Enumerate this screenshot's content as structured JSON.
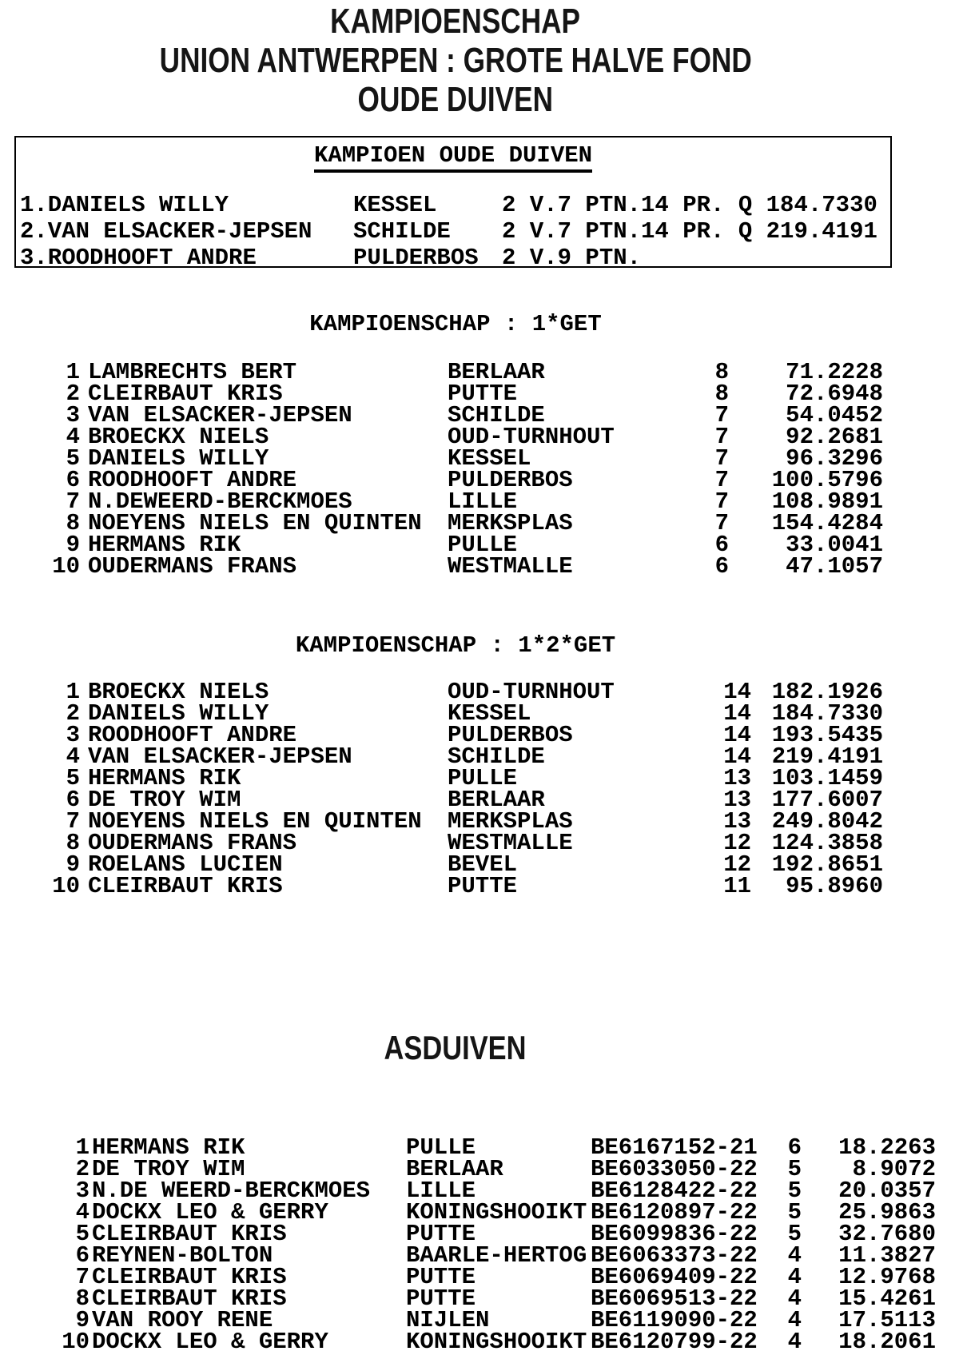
{
  "header": {
    "title_lines": [
      "KAMPIOENSCHAP",
      "UNION ANTWERPEN : GROTE HALVE FOND",
      "OUDE DUIVEN"
    ]
  },
  "champion_box": {
    "title": "KAMPIOEN OUDE DUIVEN",
    "rows": [
      {
        "entry": "1.DANIELS WILLY",
        "city": "KESSEL",
        "result": "2 V.7 PTN.14 PR. Q 184.7330"
      },
      {
        "entry": "2.VAN ELSACKER-JEPSEN",
        "city": "SCHILDE",
        "result": "2 V.7 PTN.14 PR. Q 219.4191"
      },
      {
        "entry": "3.ROODHOOFT ANDRE",
        "city": "PULDERBOS",
        "result": "2 V.9 PTN."
      }
    ]
  },
  "kampioenschap_sections": [
    {
      "title": "KAMPIOENSCHAP : 1*GET",
      "rows": [
        {
          "rank": "1",
          "name": "LAMBRECHTS BERT",
          "city": "BERLAAR",
          "count": "8",
          "points": "71.2228"
        },
        {
          "rank": "2",
          "name": "CLEIRBAUT KRIS",
          "city": "PUTTE",
          "count": "8",
          "points": "72.6948"
        },
        {
          "rank": "3",
          "name": "VAN ELSACKER-JEPSEN",
          "city": "SCHILDE",
          "count": "7",
          "points": "54.0452"
        },
        {
          "rank": "4",
          "name": "BROECKX NIELS",
          "city": "OUD-TURNHOUT",
          "count": "7",
          "points": "92.2681"
        },
        {
          "rank": "5",
          "name": "DANIELS WILLY",
          "city": "KESSEL",
          "count": "7",
          "points": "96.3296"
        },
        {
          "rank": "6",
          "name": "ROODHOOFT ANDRE",
          "city": "PULDERBOS",
          "count": "7",
          "points": "100.5796"
        },
        {
          "rank": "7",
          "name": "N.DEWEERD-BERCKMOES",
          "city": "LILLE",
          "count": "7",
          "points": "108.9891"
        },
        {
          "rank": "8",
          "name": "NOEYENS NIELS EN QUINTEN",
          "city": "MERKSPLAS",
          "count": "7",
          "points": "154.4284"
        },
        {
          "rank": "9",
          "name": "HERMANS RIK",
          "city": "PULLE",
          "count": "6",
          "points": "33.0041"
        },
        {
          "rank": "10",
          "name": "OUDERMANS FRANS",
          "city": "WESTMALLE",
          "count": "6",
          "points": "47.1057"
        }
      ]
    },
    {
      "title": "KAMPIOENSCHAP : 1*2*GET",
      "rows": [
        {
          "rank": "1",
          "name": "BROECKX NIELS",
          "city": "OUD-TURNHOUT",
          "count": "14",
          "points": "182.1926"
        },
        {
          "rank": "2",
          "name": "DANIELS WILLY",
          "city": "KESSEL",
          "count": "14",
          "points": "184.7330"
        },
        {
          "rank": "3",
          "name": "ROODHOOFT ANDRE",
          "city": "PULDERBOS",
          "count": "14",
          "points": "193.5435"
        },
        {
          "rank": "4",
          "name": "VAN ELSACKER-JEPSEN",
          "city": "SCHILDE",
          "count": "14",
          "points": "219.4191"
        },
        {
          "rank": "5",
          "name": "HERMANS RIK",
          "city": "PULLE",
          "count": "13",
          "points": "103.1459"
        },
        {
          "rank": "6",
          "name": "DE TROY WIM",
          "city": "BERLAAR",
          "count": "13",
          "points": "177.6007"
        },
        {
          "rank": "7",
          "name": "NOEYENS NIELS EN QUINTEN",
          "city": "MERKSPLAS",
          "count": "13",
          "points": "249.8042"
        },
        {
          "rank": "8",
          "name": "OUDERMANS FRANS",
          "city": "WESTMALLE",
          "count": "12",
          "points": "124.3858"
        },
        {
          "rank": "9",
          "name": "ROELANS LUCIEN",
          "city": "BEVEL",
          "count": "12",
          "points": "192.8651"
        },
        {
          "rank": "10",
          "name": "CLEIRBAUT KRIS",
          "city": "PUTTE",
          "count": "11",
          "points": "95.8960"
        }
      ]
    }
  ],
  "asduiven": {
    "title": "ASDUIVEN",
    "rows": [
      {
        "rank": "1",
        "name": "HERMANS RIK",
        "city": "PULLE",
        "ring": "BE6167152-21",
        "count": "6",
        "points": "18.2263"
      },
      {
        "rank": "2",
        "name": "DE TROY WIM",
        "city": "BERLAAR",
        "ring": "BE6033050-22",
        "count": "5",
        "points": "8.9072"
      },
      {
        "rank": "3",
        "name": "N.DE WEERD-BERCKMOES",
        "city": "LILLE",
        "ring": "BE6128422-22",
        "count": "5",
        "points": "20.0357"
      },
      {
        "rank": "4",
        "name": "DOCKX LEO & GERRY",
        "city": "KONINGSHOOIKT",
        "ring": "BE6120897-22",
        "count": "5",
        "points": "25.9863"
      },
      {
        "rank": "5",
        "name": "CLEIRBAUT KRIS",
        "city": "PUTTE",
        "ring": "BE6099836-22",
        "count": "5",
        "points": "32.7680"
      },
      {
        "rank": "6",
        "name": "REYNEN-BOLTON",
        "city": "BAARLE-HERTOG",
        "ring": "BE6063373-22",
        "count": "4",
        "points": "11.3827"
      },
      {
        "rank": "7",
        "name": "CLEIRBAUT KRIS",
        "city": "PUTTE",
        "ring": "BE6069409-22",
        "count": "4",
        "points": "12.9768"
      },
      {
        "rank": "8",
        "name": "CLEIRBAUT KRIS",
        "city": "PUTTE",
        "ring": "BE6069513-22",
        "count": "4",
        "points": "15.4261"
      },
      {
        "rank": "9",
        "name": "VAN ROOY RENE",
        "city": "NIJLEN",
        "ring": "BE6119090-22",
        "count": "4",
        "points": "17.5113"
      },
      {
        "rank": "10",
        "name": "DOCKX LEO & GERRY",
        "city": "KONINGSHOOIKT",
        "ring": "BE6120799-22",
        "count": "4",
        "points": "18.2061"
      }
    ]
  }
}
